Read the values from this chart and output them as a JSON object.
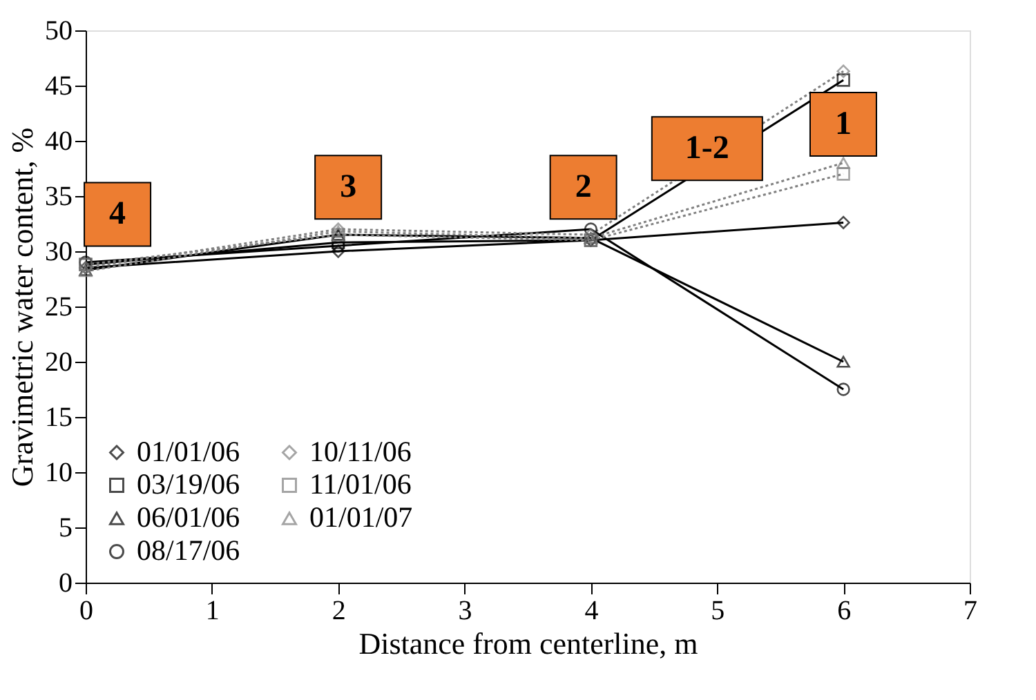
{
  "chart_data": {
    "type": "line",
    "xlabel": "Distance from centerline, m",
    "ylabel": "Gravimetric water content, %",
    "x": [
      0,
      2,
      4,
      6
    ],
    "series": [
      {
        "name": "01/01/06",
        "color": "#000000",
        "marker": "diamond",
        "line_style": "solid",
        "values": [
          28.5,
          30.0,
          31.0,
          32.6
        ]
      },
      {
        "name": "03/19/06",
        "color": "#000000",
        "marker": "square",
        "line_style": "solid",
        "values": [
          28.8,
          30.8,
          31.0,
          45.5
        ]
      },
      {
        "name": "06/01/06",
        "color": "#000000",
        "marker": "triangle",
        "line_style": "solid",
        "values": [
          28.3,
          31.5,
          31.2,
          20.0
        ]
      },
      {
        "name": "08/17/06",
        "color": "#000000",
        "marker": "circle",
        "line_style": "solid",
        "values": [
          29.0,
          30.5,
          32.0,
          17.5
        ]
      },
      {
        "name": "10/11/06",
        "color": "#808080",
        "marker": "diamond",
        "line_style": "dotted",
        "values": [
          28.5,
          32.0,
          31.5,
          46.3
        ]
      },
      {
        "name": "11/01/06",
        "color": "#808080",
        "marker": "square",
        "line_style": "dotted",
        "values": [
          28.8,
          31.5,
          31.0,
          37.0
        ]
      },
      {
        "name": "01/01/07",
        "color": "#808080",
        "marker": "triangle",
        "line_style": "dotted",
        "values": [
          28.2,
          31.8,
          31.2,
          38.0
        ]
      }
    ],
    "xlim": [
      0,
      7
    ],
    "xticks": [
      0,
      1,
      2,
      3,
      4,
      5,
      6,
      7
    ],
    "ylim": [
      0,
      50
    ],
    "yticks": [
      0,
      5,
      10,
      15,
      20,
      25,
      30,
      35,
      40,
      45,
      50
    ],
    "grid": false,
    "legend": "bottom left",
    "annotations": [
      "4",
      "3",
      "2",
      "1-2",
      "1"
    ]
  }
}
